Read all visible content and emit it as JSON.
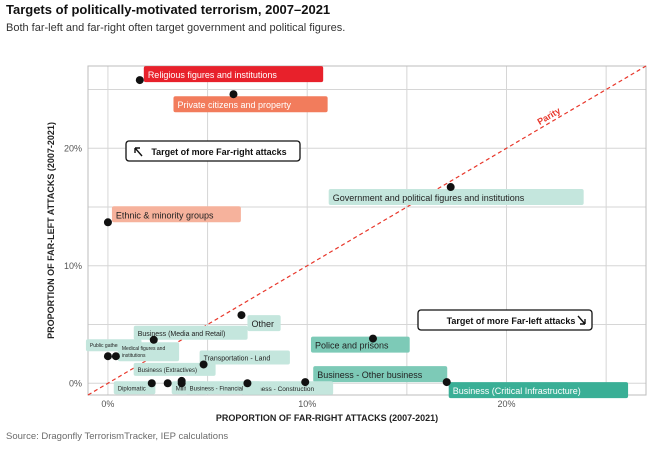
{
  "title": "Targets of politically-motivated terrorism, 2007–2021",
  "subtitle": "Both far-left and far-right often target government and political figures.",
  "source": "Source: Dragonfly TerrorismTracker, IEP calculations",
  "chart_data": {
    "type": "scatter",
    "xlabel": "PROPORTION OF FAR-RIGHT ATTACKS (2007-2021)",
    "ylabel": "PROPORTION OF FAR-LEFT ATTACKS (2007-2021)",
    "xlim": [
      -1,
      27
    ],
    "ylim": [
      -1,
      27
    ],
    "x_ticks": [
      {
        "value": 0,
        "label": "0%"
      },
      {
        "value": 10,
        "label": "10%"
      },
      {
        "value": 20,
        "label": "20%"
      }
    ],
    "y_ticks": [
      {
        "value": 0,
        "label": "0%"
      },
      {
        "value": 10,
        "label": "10%"
      },
      {
        "value": 20,
        "label": "20%"
      }
    ],
    "grid": true,
    "parity_label": "Parity",
    "annotations": {
      "far_right": "Target of more Far-right attacks",
      "far_left": "Target of more Far-left attacks"
    },
    "colors": {
      "far_left_strong": "#e8212b",
      "far_left_medium": "#f27c5c",
      "far_left_light": "#f6b29c",
      "far_right_strong": "#3aaf96",
      "far_right_medium": "#7dcab7",
      "far_right_light": "#c4e6dd",
      "parity_line": "#e8372b"
    },
    "points": [
      {
        "label": "Religious figures and institutions",
        "x": 1.6,
        "y": 25.8,
        "color": "#e8212b",
        "text_color": "#ffffff"
      },
      {
        "label": "Private citizens and property",
        "x": 6.3,
        "y": 24.6,
        "color": "#f27c5c",
        "text_color": "#ffffff"
      },
      {
        "label": "Ethnic & minority groups",
        "x": 0.0,
        "y": 13.7,
        "color": "#f6b29c",
        "text_color": "#222222"
      },
      {
        "label": "Government and political figures and institutions",
        "x": 17.2,
        "y": 16.7,
        "color": "#c4e6dd",
        "text_color": "#222222"
      },
      {
        "label": "Other",
        "x": 6.7,
        "y": 5.8,
        "color": "#c4e6dd",
        "text_color": "#222222"
      },
      {
        "label": "Business (Media and Retail)",
        "x": 2.3,
        "y": 3.7,
        "color": "#c4e6dd",
        "text_color": "#222222"
      },
      {
        "label": "Police and prisons",
        "x": 13.3,
        "y": 3.8,
        "color": "#7dcab7",
        "text_color": "#222222"
      },
      {
        "label": "Transportation - Land",
        "x": 4.8,
        "y": 1.6,
        "color": "#c4e6dd",
        "text_color": "#222222"
      },
      {
        "label": "Business - Other business",
        "x": 9.9,
        "y": 0.1,
        "color": "#7dcab7",
        "text_color": "#222222"
      },
      {
        "label": "Business (Critical Infrastructure)",
        "x": 17.0,
        "y": 0.1,
        "color": "#3aaf96",
        "text_color": "#ffffff"
      },
      {
        "label": "Business (Extractives)",
        "x": 3.7,
        "y": 0.2,
        "color": "#c4e6dd",
        "text_color": "#222222"
      },
      {
        "label": "Business - Construction",
        "x": 7.0,
        "y": 0.0,
        "color": "#c4e6dd",
        "text_color": "#222222"
      },
      {
        "label": "Public gatherings",
        "x": 0.0,
        "y": 2.3,
        "color": "#c4e6dd",
        "text_color": "#222222"
      },
      {
        "label": "Medical figures and institutions",
        "x": 0.4,
        "y": 2.3,
        "color": "#c4e6dd",
        "text_color": "#222222"
      },
      {
        "label": "Diplomatic",
        "x": 2.2,
        "y": 0.0,
        "color": "#c4e6dd",
        "text_color": "#222222"
      },
      {
        "label": "Military",
        "x": 3.0,
        "y": 0.0,
        "color": "#c4e6dd",
        "text_color": "#222222"
      },
      {
        "label": "Business - Financial",
        "x": 3.7,
        "y": 0.0,
        "color": "#c4e6dd",
        "text_color": "#222222"
      }
    ]
  }
}
